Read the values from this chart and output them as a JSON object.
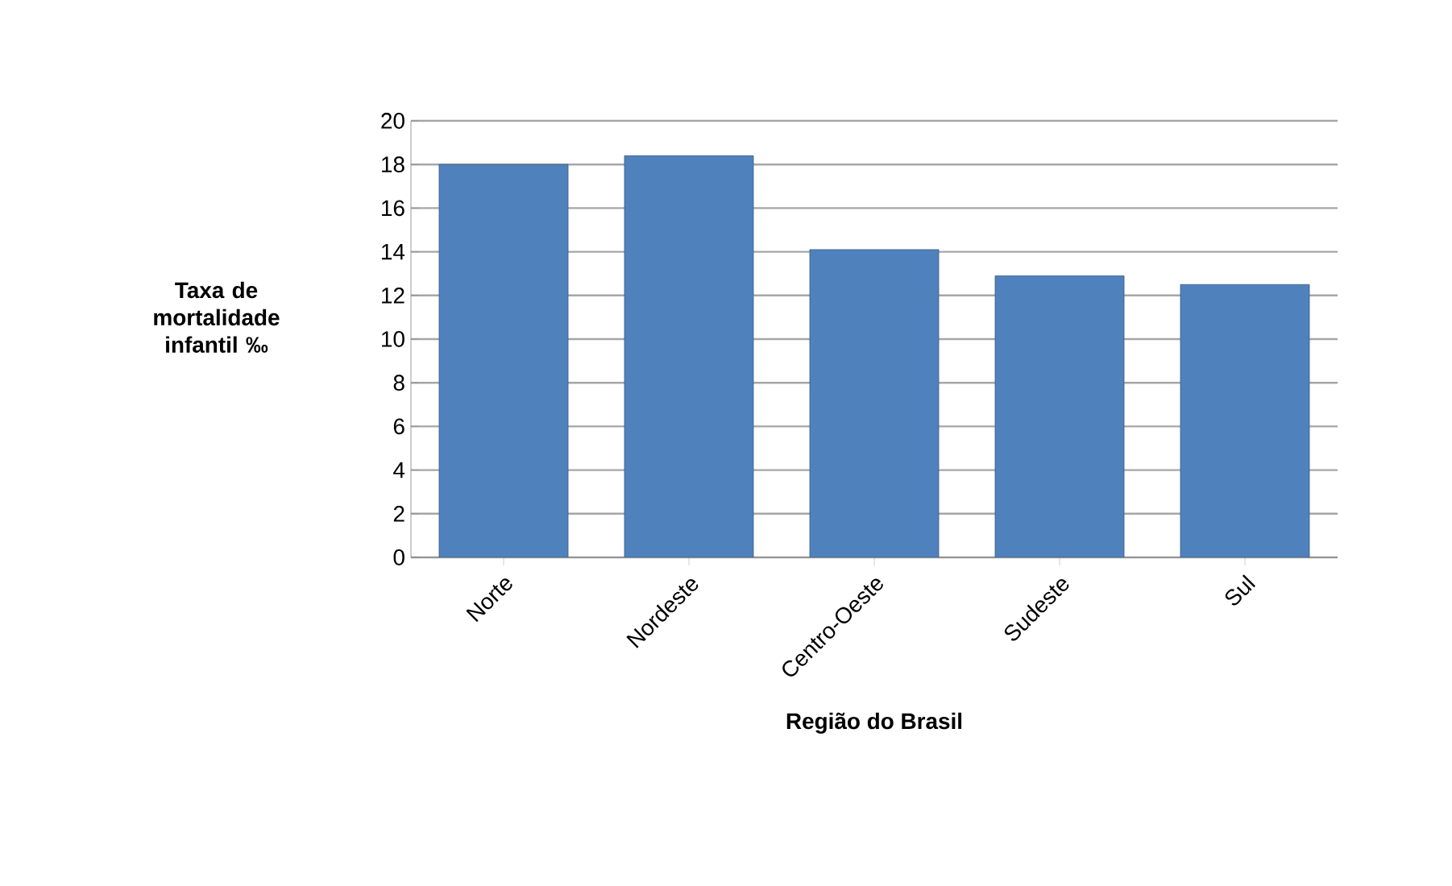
{
  "chart_data": {
    "type": "bar",
    "xlabel": "Região do Brasil",
    "ylabel": "Taxa de mortalidade infantil ‰",
    "categories": [
      "Norte",
      "Nordeste",
      "Centro-Oeste",
      "Sudeste",
      "Sul"
    ],
    "values": [
      18.0,
      18.4,
      14.1,
      12.9,
      12.5
    ],
    "color": "#4f81bd",
    "ylim": [
      0,
      20
    ],
    "yticks": [
      0,
      2,
      4,
      6,
      8,
      10,
      12,
      14,
      16,
      18,
      20
    ],
    "grid": "y"
  }
}
